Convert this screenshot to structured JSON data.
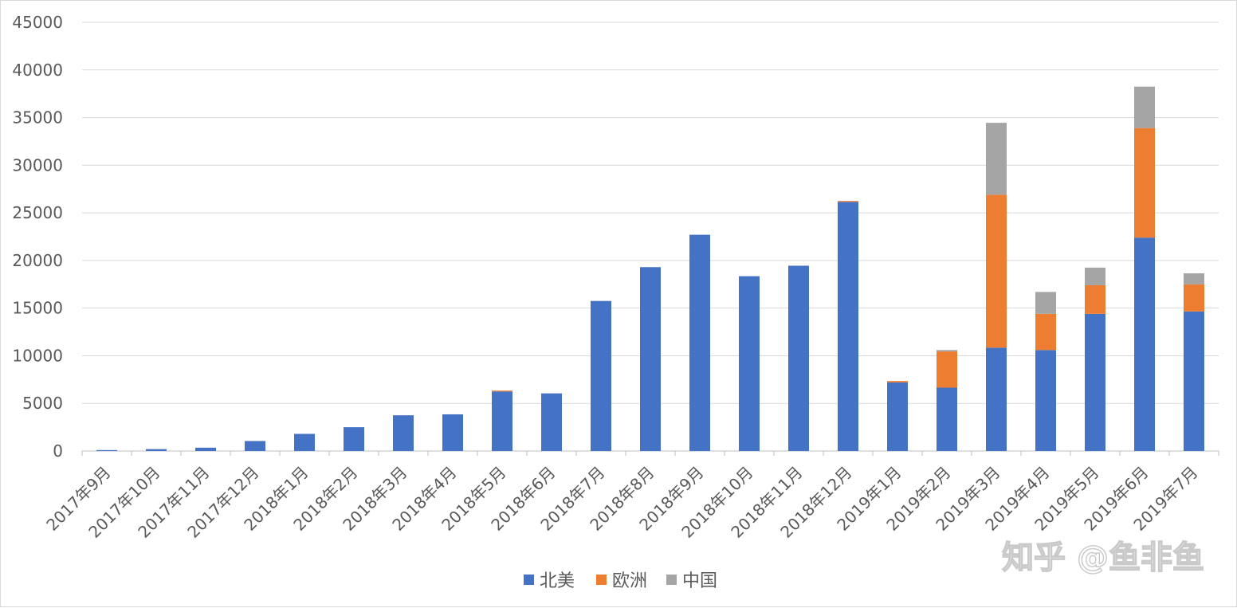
{
  "chart_data": {
    "type": "bar",
    "stacked": true,
    "categories": [
      "2017年9月",
      "2017年10月",
      "2017年11月",
      "2017年12月",
      "2018年1月",
      "2018年2月",
      "2018年3月",
      "2018年4月",
      "2018年5月",
      "2018年6月",
      "2018年7月",
      "2018年8月",
      "2018年9月",
      "2018年10月",
      "2018年11月",
      "2018年12月",
      "2019年1月",
      "2019年2月",
      "2019年3月",
      "2019年4月",
      "2019年5月",
      "2019年6月",
      "2019年7月"
    ],
    "series": [
      {
        "name": "北美",
        "color": "#4472c4",
        "values": [
          100,
          200,
          350,
          1050,
          1800,
          2500,
          3750,
          3850,
          6250,
          6050,
          15750,
          19300,
          22700,
          18350,
          19450,
          26150,
          7200,
          6650,
          10850,
          10600,
          14400,
          22400,
          14650
        ]
      },
      {
        "name": "欧洲",
        "color": "#ed7d31",
        "values": [
          0,
          0,
          0,
          0,
          0,
          0,
          0,
          0,
          100,
          0,
          0,
          0,
          0,
          0,
          0,
          100,
          150,
          3800,
          16050,
          3800,
          3000,
          11500,
          2850
        ]
      },
      {
        "name": "中国",
        "color": "#a5a5a5",
        "values": [
          0,
          0,
          0,
          0,
          0,
          0,
          0,
          0,
          0,
          0,
          0,
          0,
          0,
          0,
          0,
          0,
          0,
          150,
          7550,
          2300,
          1850,
          4350,
          1150
        ]
      }
    ],
    "ylim": [
      0,
      45000
    ],
    "yticks": [
      0,
      5000,
      10000,
      15000,
      20000,
      25000,
      30000,
      35000,
      40000,
      45000
    ],
    "grid": true,
    "legend_position": "bottom",
    "title": "",
    "xlabel": "",
    "ylabel": ""
  },
  "watermark": "知乎 @鱼非鱼"
}
